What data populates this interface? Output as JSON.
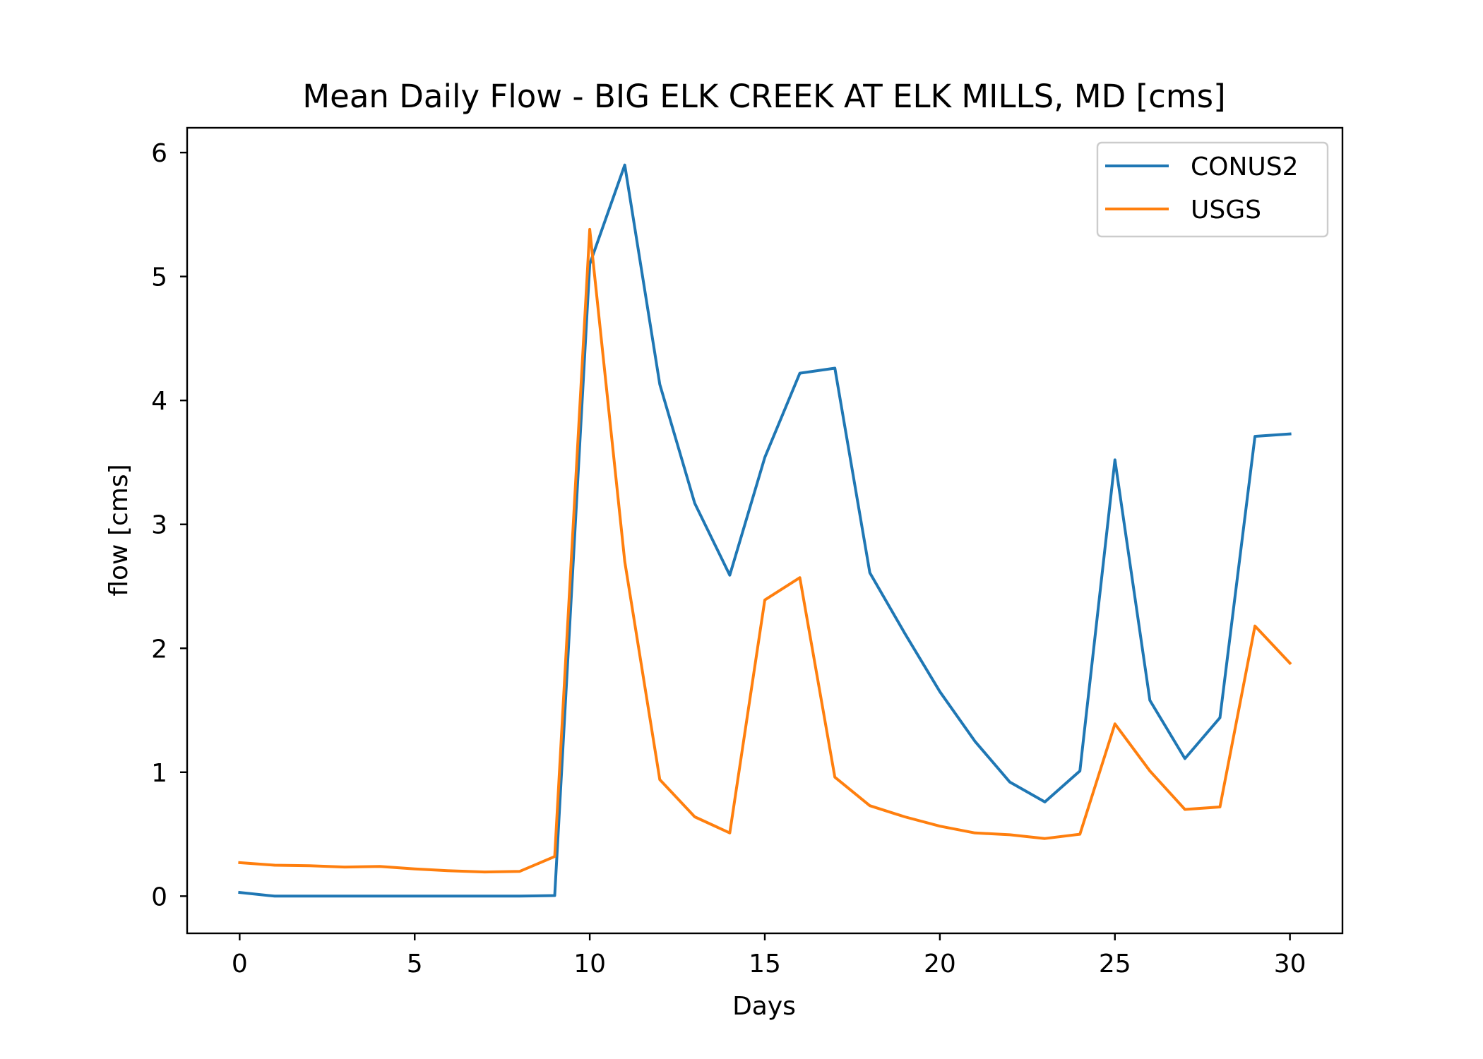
{
  "chart_data": {
    "type": "line",
    "title": "Mean Daily Flow - BIG ELK CREEK AT ELK MILLS, MD [cms]",
    "xlabel": "Days",
    "ylabel": "flow [cms]",
    "xlim": [
      -1.5,
      31.5
    ],
    "ylim": [
      -0.3,
      6.2
    ],
    "xticks": [
      0,
      5,
      10,
      15,
      20,
      25,
      30
    ],
    "yticks": [
      0,
      1,
      2,
      3,
      4,
      5,
      6
    ],
    "grid": false,
    "legend_position": "upper right",
    "x": [
      0,
      1,
      2,
      3,
      4,
      5,
      6,
      7,
      8,
      9,
      10,
      11,
      12,
      13,
      14,
      15,
      16,
      17,
      18,
      19,
      20,
      21,
      22,
      23,
      24,
      25,
      26,
      27,
      28,
      29,
      30
    ],
    "series": [
      {
        "name": "CONUS2",
        "color": "#1f77b4",
        "values": [
          0.03,
          0.0,
          0.0,
          0.0,
          0.0,
          0.0,
          0.0,
          0.0,
          0.0,
          0.005,
          5.1,
          5.9,
          4.13,
          3.17,
          2.59,
          3.54,
          4.22,
          4.26,
          2.61,
          2.12,
          1.65,
          1.25,
          0.92,
          0.76,
          1.01,
          3.52,
          1.58,
          1.11,
          1.44,
          3.71,
          3.73
        ]
      },
      {
        "name": "USGS",
        "color": "#ff7f0e",
        "values": [
          0.27,
          0.25,
          0.245,
          0.235,
          0.24,
          0.22,
          0.205,
          0.195,
          0.2,
          0.32,
          5.38,
          2.7,
          0.94,
          0.64,
          0.51,
          2.39,
          2.57,
          0.96,
          0.73,
          0.64,
          0.565,
          0.51,
          0.495,
          0.465,
          0.5,
          1.39,
          1.01,
          0.7,
          0.72,
          2.18,
          1.88
        ]
      }
    ]
  }
}
